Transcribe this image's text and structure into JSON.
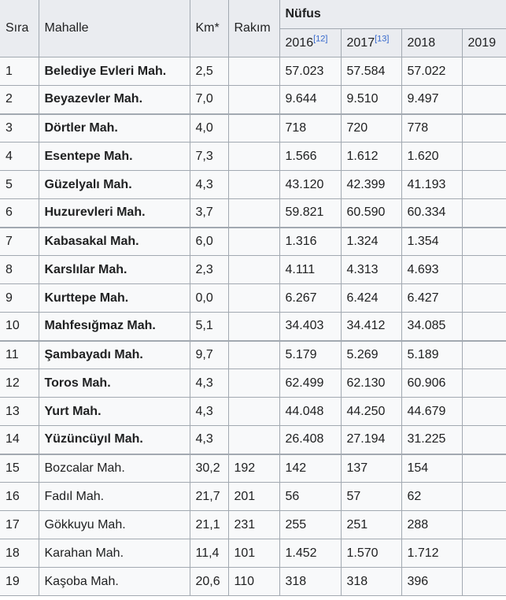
{
  "table": {
    "headers": {
      "sira": "Sıra",
      "mahalle": "Mahalle",
      "km": "Km*",
      "rakim": "Rakım",
      "nufus": "Nüfus",
      "years": [
        {
          "label": "2016",
          "ref": "[12]"
        },
        {
          "label": "2017",
          "ref": "[13]"
        },
        {
          "label": "2018",
          "ref": ""
        },
        {
          "label": "2019",
          "ref": ""
        }
      ]
    },
    "rows": [
      {
        "sira": "1",
        "mahalle": "Belediye Evleri Mah.",
        "km": "2,5",
        "rakim": "",
        "p2016": "57.023",
        "p2017": "57.584",
        "p2018": "57.022",
        "p2019": "",
        "bold": true,
        "sep": false
      },
      {
        "sira": "2",
        "mahalle": "Beyazevler Mah.",
        "km": "7,0",
        "rakim": "",
        "p2016": "9.644",
        "p2017": "9.510",
        "p2018": "9.497",
        "p2019": "",
        "bold": true,
        "sep": false
      },
      {
        "sira": "3",
        "mahalle": "Dörtler Mah.",
        "km": "4,0",
        "rakim": "",
        "p2016": "718",
        "p2017": "720",
        "p2018": "778",
        "p2019": "",
        "bold": true,
        "sep": true
      },
      {
        "sira": "4",
        "mahalle": "Esentepe Mah.",
        "km": "7,3",
        "rakim": "",
        "p2016": "1.566",
        "p2017": "1.612",
        "p2018": "1.620",
        "p2019": "",
        "bold": true,
        "sep": false
      },
      {
        "sira": "5",
        "mahalle": "Güzelyalı Mah.",
        "km": "4,3",
        "rakim": "",
        "p2016": "43.120",
        "p2017": "42.399",
        "p2018": "41.193",
        "p2019": "",
        "bold": true,
        "sep": false
      },
      {
        "sira": "6",
        "mahalle": "Huzurevleri Mah.",
        "km": "3,7",
        "rakim": "",
        "p2016": "59.821",
        "p2017": "60.590",
        "p2018": "60.334",
        "p2019": "",
        "bold": true,
        "sep": false
      },
      {
        "sira": "7",
        "mahalle": "Kabasakal Mah.",
        "km": "6,0",
        "rakim": "",
        "p2016": "1.316",
        "p2017": "1.324",
        "p2018": "1.354",
        "p2019": "",
        "bold": true,
        "sep": true
      },
      {
        "sira": "8",
        "mahalle": "Karslılar Mah.",
        "km": "2,3",
        "rakim": "",
        "p2016": "4.111",
        "p2017": "4.313",
        "p2018": "4.693",
        "p2019": "",
        "bold": true,
        "sep": false
      },
      {
        "sira": "9",
        "mahalle": "Kurttepe Mah.",
        "km": "0,0",
        "rakim": "",
        "p2016": "6.267",
        "p2017": "6.424",
        "p2018": "6.427",
        "p2019": "",
        "bold": true,
        "sep": false
      },
      {
        "sira": "10",
        "mahalle": "Mahfesığmaz Mah.",
        "km": "5,1",
        "rakim": "",
        "p2016": "34.403",
        "p2017": "34.412",
        "p2018": "34.085",
        "p2019": "",
        "bold": true,
        "sep": false
      },
      {
        "sira": "11",
        "mahalle": "Şambayadı Mah.",
        "km": "9,7",
        "rakim": "",
        "p2016": "5.179",
        "p2017": "5.269",
        "p2018": "5.189",
        "p2019": "",
        "bold": true,
        "sep": true
      },
      {
        "sira": "12",
        "mahalle": "Toros Mah.",
        "km": "4,3",
        "rakim": "",
        "p2016": "62.499",
        "p2017": "62.130",
        "p2018": "60.906",
        "p2019": "",
        "bold": true,
        "sep": false
      },
      {
        "sira": "13",
        "mahalle": "Yurt Mah.",
        "km": "4,3",
        "rakim": "",
        "p2016": "44.048",
        "p2017": "44.250",
        "p2018": "44.679",
        "p2019": "",
        "bold": true,
        "sep": false
      },
      {
        "sira": "14",
        "mahalle": "Yüzüncüyıl Mah.",
        "km": "4,3",
        "rakim": "",
        "p2016": "26.408",
        "p2017": "27.194",
        "p2018": "31.225",
        "p2019": "",
        "bold": true,
        "sep": false
      },
      {
        "sira": "15",
        "mahalle": "Bozcalar Mah.",
        "km": "30,2",
        "rakim": "192",
        "p2016": "142",
        "p2017": "137",
        "p2018": "154",
        "p2019": "",
        "bold": false,
        "sep": true
      },
      {
        "sira": "16",
        "mahalle": "Fadıl Mah.",
        "km": "21,7",
        "rakim": "201",
        "p2016": "56",
        "p2017": "57",
        "p2018": "62",
        "p2019": "",
        "bold": false,
        "sep": false
      },
      {
        "sira": "17",
        "mahalle": "Gökkuyu Mah.",
        "km": "21,1",
        "rakim": "231",
        "p2016": "255",
        "p2017": "251",
        "p2018": "288",
        "p2019": "",
        "bold": false,
        "sep": false
      },
      {
        "sira": "18",
        "mahalle": "Karahan Mah.",
        "km": "11,4",
        "rakim": "101",
        "p2016": "1.452",
        "p2017": "1.570",
        "p2018": "1.712",
        "p2019": "",
        "bold": false,
        "sep": false
      },
      {
        "sira": "19",
        "mahalle": "Kaşoba Mah.",
        "km": "20,6",
        "rakim": "110",
        "p2016": "318",
        "p2017": "318",
        "p2018": "396",
        "p2019": "",
        "bold": false,
        "sep": false
      }
    ]
  }
}
